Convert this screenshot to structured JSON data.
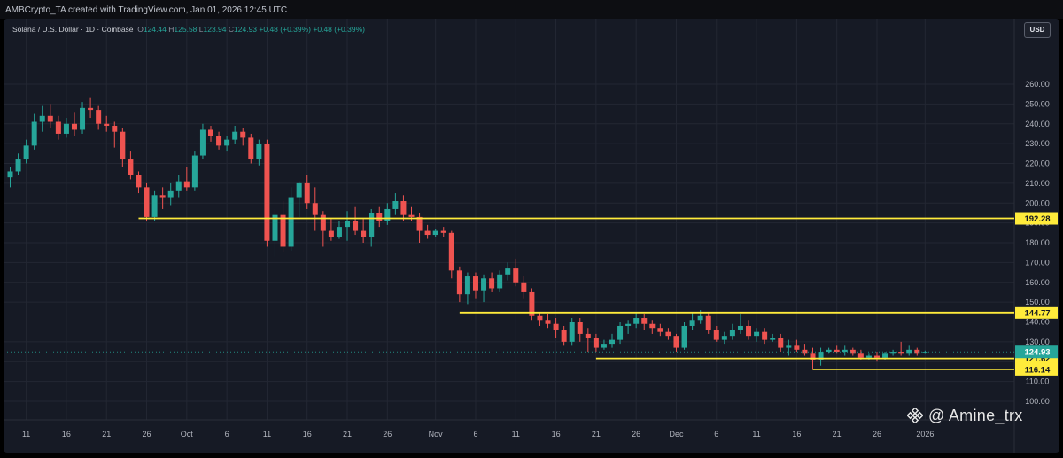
{
  "header": {
    "created_text": "AMBCrypto_TA created with TradingView.com, Jan 01, 2026 12:45 UTC"
  },
  "legend": {
    "symbol": "Solana / U.S. Dollar · 1D · Coinbase",
    "open_label": "O",
    "open": "124.44",
    "high_label": "H",
    "high": "125.58",
    "low_label": "L",
    "low": "123.94",
    "close_label": "C",
    "close": "124.93",
    "change": "+0.48 (+0.39%)",
    "change2": "+0.48 (+0.39%)"
  },
  "currency_label": "USD",
  "watermark": {
    "text": "@ Amine_trx",
    "icon": "binance-square-icon"
  },
  "colors": {
    "up": "#26a69a",
    "down": "#ef5350",
    "level": "#ffeb3b",
    "background": "#161a25",
    "grid": "#232733",
    "axis_text": "#b2b5be"
  },
  "chart_data": {
    "type": "candlestick",
    "title": "Solana / U.S. Dollar · 1D · Coinbase",
    "ylim": [
      90,
      270
    ],
    "y_ticks": [
      100,
      110,
      120,
      130,
      140,
      150,
      160,
      170,
      180,
      190,
      200,
      210,
      220,
      230,
      240,
      250,
      260
    ],
    "x_ticks": [
      "11",
      "16",
      "21",
      "26",
      "Oct",
      "6",
      "11",
      "16",
      "21",
      "26",
      "Nov",
      "6",
      "11",
      "16",
      "21",
      "26",
      "Dec",
      "6",
      "11",
      "16",
      "21",
      "26",
      "2026"
    ],
    "x_tick_dates": [
      "2025-09-11",
      "2025-09-16",
      "2025-09-21",
      "2025-09-26",
      "2025-10-01",
      "2025-10-06",
      "2025-10-11",
      "2025-10-16",
      "2025-10-21",
      "2025-10-26",
      "2025-11-01",
      "2025-11-06",
      "2025-11-11",
      "2025-11-16",
      "2025-11-21",
      "2025-11-26",
      "2025-12-01",
      "2025-12-06",
      "2025-12-11",
      "2025-12-16",
      "2025-12-21",
      "2025-12-26",
      "2026-01-01"
    ],
    "levels": [
      {
        "value": 192.28,
        "label": "192.28",
        "from": "2025-09-25"
      },
      {
        "value": 144.77,
        "label": "144.77",
        "from": "2025-11-04"
      },
      {
        "value": 121.62,
        "label": "121.62",
        "from": "2025-11-21"
      },
      {
        "value": 116.14,
        "label": "116.14",
        "from": "2025-12-18"
      }
    ],
    "last_price": {
      "value": 124.93,
      "label": "124.93"
    },
    "candles": [
      {
        "d": "2025-09-09",
        "o": 213,
        "h": 218,
        "l": 208,
        "c": 216
      },
      {
        "d": "2025-09-10",
        "o": 216,
        "h": 225,
        "l": 214,
        "c": 222
      },
      {
        "d": "2025-09-11",
        "o": 222,
        "h": 232,
        "l": 220,
        "c": 229
      },
      {
        "d": "2025-09-12",
        "o": 229,
        "h": 245,
        "l": 227,
        "c": 241
      },
      {
        "d": "2025-09-13",
        "o": 241,
        "h": 249,
        "l": 236,
        "c": 244
      },
      {
        "d": "2025-09-14",
        "o": 244,
        "h": 250,
        "l": 238,
        "c": 241
      },
      {
        "d": "2025-09-15",
        "o": 241,
        "h": 244,
        "l": 232,
        "c": 235
      },
      {
        "d": "2025-09-16",
        "o": 235,
        "h": 243,
        "l": 233,
        "c": 240
      },
      {
        "d": "2025-09-17",
        "o": 240,
        "h": 246,
        "l": 234,
        "c": 237
      },
      {
        "d": "2025-09-18",
        "o": 237,
        "h": 251,
        "l": 235,
        "c": 248
      },
      {
        "d": "2025-09-19",
        "o": 248,
        "h": 253,
        "l": 243,
        "c": 247
      },
      {
        "d": "2025-09-20",
        "o": 247,
        "h": 249,
        "l": 237,
        "c": 240
      },
      {
        "d": "2025-09-21",
        "o": 240,
        "h": 244,
        "l": 236,
        "c": 239
      },
      {
        "d": "2025-09-22",
        "o": 239,
        "h": 241,
        "l": 228,
        "c": 236
      },
      {
        "d": "2025-09-23",
        "o": 236,
        "h": 238,
        "l": 218,
        "c": 222
      },
      {
        "d": "2025-09-24",
        "o": 222,
        "h": 226,
        "l": 212,
        "c": 214
      },
      {
        "d": "2025-09-25",
        "o": 214,
        "h": 216,
        "l": 205,
        "c": 208
      },
      {
        "d": "2025-09-26",
        "o": 208,
        "h": 210,
        "l": 191,
        "c": 193
      },
      {
        "d": "2025-09-27",
        "o": 193,
        "h": 206,
        "l": 191,
        "c": 204
      },
      {
        "d": "2025-09-28",
        "o": 204,
        "h": 208,
        "l": 197,
        "c": 203
      },
      {
        "d": "2025-09-29",
        "o": 203,
        "h": 210,
        "l": 199,
        "c": 206
      },
      {
        "d": "2025-09-30",
        "o": 206,
        "h": 214,
        "l": 203,
        "c": 211
      },
      {
        "d": "2025-10-01",
        "o": 211,
        "h": 218,
        "l": 206,
        "c": 208
      },
      {
        "d": "2025-10-02",
        "o": 208,
        "h": 226,
        "l": 206,
        "c": 224
      },
      {
        "d": "2025-10-03",
        "o": 224,
        "h": 240,
        "l": 222,
        "c": 237
      },
      {
        "d": "2025-10-04",
        "o": 237,
        "h": 239,
        "l": 231,
        "c": 234
      },
      {
        "d": "2025-10-05",
        "o": 234,
        "h": 236,
        "l": 227,
        "c": 229
      },
      {
        "d": "2025-10-06",
        "o": 229,
        "h": 234,
        "l": 226,
        "c": 232
      },
      {
        "d": "2025-10-07",
        "o": 232,
        "h": 239,
        "l": 230,
        "c": 236
      },
      {
        "d": "2025-10-08",
        "o": 236,
        "h": 238,
        "l": 229,
        "c": 233
      },
      {
        "d": "2025-10-09",
        "o": 233,
        "h": 235,
        "l": 220,
        "c": 222
      },
      {
        "d": "2025-10-10",
        "o": 222,
        "h": 232,
        "l": 219,
        "c": 230
      },
      {
        "d": "2025-10-11",
        "o": 230,
        "h": 232,
        "l": 178,
        "c": 181
      },
      {
        "d": "2025-10-12",
        "o": 181,
        "h": 197,
        "l": 173,
        "c": 194
      },
      {
        "d": "2025-10-13",
        "o": 194,
        "h": 201,
        "l": 175,
        "c": 178
      },
      {
        "d": "2025-10-14",
        "o": 178,
        "h": 208,
        "l": 176,
        "c": 203
      },
      {
        "d": "2025-10-15",
        "o": 203,
        "h": 211,
        "l": 193,
        "c": 210
      },
      {
        "d": "2025-10-16",
        "o": 210,
        "h": 214,
        "l": 197,
        "c": 200
      },
      {
        "d": "2025-10-17",
        "o": 200,
        "h": 208,
        "l": 186,
        "c": 194
      },
      {
        "d": "2025-10-18",
        "o": 194,
        "h": 196,
        "l": 178,
        "c": 186
      },
      {
        "d": "2025-10-19",
        "o": 186,
        "h": 192,
        "l": 181,
        "c": 183
      },
      {
        "d": "2025-10-20",
        "o": 183,
        "h": 191,
        "l": 182,
        "c": 188
      },
      {
        "d": "2025-10-21",
        "o": 188,
        "h": 196,
        "l": 181,
        "c": 191
      },
      {
        "d": "2025-10-22",
        "o": 191,
        "h": 198,
        "l": 184,
        "c": 186
      },
      {
        "d": "2025-10-23",
        "o": 186,
        "h": 192,
        "l": 180,
        "c": 183
      },
      {
        "d": "2025-10-24",
        "o": 183,
        "h": 197,
        "l": 178,
        "c": 195
      },
      {
        "d": "2025-10-25",
        "o": 195,
        "h": 198,
        "l": 188,
        "c": 191
      },
      {
        "d": "2025-10-26",
        "o": 191,
        "h": 200,
        "l": 189,
        "c": 197
      },
      {
        "d": "2025-10-27",
        "o": 197,
        "h": 205,
        "l": 194,
        "c": 201
      },
      {
        "d": "2025-10-28",
        "o": 201,
        "h": 204,
        "l": 191,
        "c": 194
      },
      {
        "d": "2025-10-29",
        "o": 194,
        "h": 198,
        "l": 191,
        "c": 193
      },
      {
        "d": "2025-10-30",
        "o": 193,
        "h": 195,
        "l": 180,
        "c": 186
      },
      {
        "d": "2025-10-31",
        "o": 186,
        "h": 189,
        "l": 182,
        "c": 184
      },
      {
        "d": "2025-11-01",
        "o": 184,
        "h": 187,
        "l": 183,
        "c": 186
      },
      {
        "d": "2025-11-02",
        "o": 186,
        "h": 188,
        "l": 183,
        "c": 185
      },
      {
        "d": "2025-11-03",
        "o": 185,
        "h": 186,
        "l": 162,
        "c": 166
      },
      {
        "d": "2025-11-04",
        "o": 166,
        "h": 168,
        "l": 150,
        "c": 154
      },
      {
        "d": "2025-11-05",
        "o": 154,
        "h": 165,
        "l": 149,
        "c": 163
      },
      {
        "d": "2025-11-06",
        "o": 163,
        "h": 165,
        "l": 152,
        "c": 156
      },
      {
        "d": "2025-11-07",
        "o": 156,
        "h": 164,
        "l": 150,
        "c": 162
      },
      {
        "d": "2025-11-08",
        "o": 162,
        "h": 165,
        "l": 155,
        "c": 157
      },
      {
        "d": "2025-11-09",
        "o": 157,
        "h": 166,
        "l": 155,
        "c": 164
      },
      {
        "d": "2025-11-10",
        "o": 164,
        "h": 170,
        "l": 161,
        "c": 167
      },
      {
        "d": "2025-11-11",
        "o": 167,
        "h": 172,
        "l": 158,
        "c": 160
      },
      {
        "d": "2025-11-12",
        "o": 160,
        "h": 163,
        "l": 152,
        "c": 155
      },
      {
        "d": "2025-11-13",
        "o": 155,
        "h": 157,
        "l": 141,
        "c": 143
      },
      {
        "d": "2025-11-14",
        "o": 143,
        "h": 145,
        "l": 138,
        "c": 141
      },
      {
        "d": "2025-11-15",
        "o": 141,
        "h": 144,
        "l": 137,
        "c": 139
      },
      {
        "d": "2025-11-16",
        "o": 139,
        "h": 142,
        "l": 132,
        "c": 136
      },
      {
        "d": "2025-11-17",
        "o": 136,
        "h": 138,
        "l": 128,
        "c": 130
      },
      {
        "d": "2025-11-18",
        "o": 130,
        "h": 142,
        "l": 128,
        "c": 140
      },
      {
        "d": "2025-11-19",
        "o": 140,
        "h": 142,
        "l": 130,
        "c": 134
      },
      {
        "d": "2025-11-20",
        "o": 134,
        "h": 137,
        "l": 125,
        "c": 132
      },
      {
        "d": "2025-11-21",
        "o": 132,
        "h": 134,
        "l": 125,
        "c": 127
      },
      {
        "d": "2025-11-22",
        "o": 127,
        "h": 131,
        "l": 126,
        "c": 129
      },
      {
        "d": "2025-11-23",
        "o": 129,
        "h": 134,
        "l": 127,
        "c": 131
      },
      {
        "d": "2025-11-24",
        "o": 131,
        "h": 140,
        "l": 129,
        "c": 138
      },
      {
        "d": "2025-11-25",
        "o": 138,
        "h": 141,
        "l": 134,
        "c": 139
      },
      {
        "d": "2025-11-26",
        "o": 139,
        "h": 145,
        "l": 137,
        "c": 142
      },
      {
        "d": "2025-11-27",
        "o": 142,
        "h": 144,
        "l": 136,
        "c": 139
      },
      {
        "d": "2025-11-28",
        "o": 139,
        "h": 141,
        "l": 134,
        "c": 137
      },
      {
        "d": "2025-11-29",
        "o": 137,
        "h": 139,
        "l": 133,
        "c": 135
      },
      {
        "d": "2025-11-30",
        "o": 135,
        "h": 137,
        "l": 131,
        "c": 133
      },
      {
        "d": "2025-12-01",
        "o": 133,
        "h": 134,
        "l": 125,
        "c": 127
      },
      {
        "d": "2025-12-02",
        "o": 127,
        "h": 140,
        "l": 126,
        "c": 138
      },
      {
        "d": "2025-12-03",
        "o": 138,
        "h": 145,
        "l": 136,
        "c": 141
      },
      {
        "d": "2025-12-04",
        "o": 141,
        "h": 146,
        "l": 139,
        "c": 143
      },
      {
        "d": "2025-12-05",
        "o": 143,
        "h": 145,
        "l": 134,
        "c": 136
      },
      {
        "d": "2025-12-06",
        "o": 136,
        "h": 138,
        "l": 130,
        "c": 131
      },
      {
        "d": "2025-12-07",
        "o": 131,
        "h": 135,
        "l": 129,
        "c": 133
      },
      {
        "d": "2025-12-08",
        "o": 133,
        "h": 139,
        "l": 131,
        "c": 136
      },
      {
        "d": "2025-12-09",
        "o": 136,
        "h": 144,
        "l": 134,
        "c": 138
      },
      {
        "d": "2025-12-10",
        "o": 138,
        "h": 141,
        "l": 131,
        "c": 133
      },
      {
        "d": "2025-12-11",
        "o": 133,
        "h": 137,
        "l": 130,
        "c": 135
      },
      {
        "d": "2025-12-12",
        "o": 135,
        "h": 137,
        "l": 129,
        "c": 131
      },
      {
        "d": "2025-12-13",
        "o": 131,
        "h": 134,
        "l": 130,
        "c": 132
      },
      {
        "d": "2025-12-14",
        "o": 132,
        "h": 134,
        "l": 125,
        "c": 127
      },
      {
        "d": "2025-12-15",
        "o": 127,
        "h": 131,
        "l": 123,
        "c": 128
      },
      {
        "d": "2025-12-16",
        "o": 128,
        "h": 131,
        "l": 125,
        "c": 126
      },
      {
        "d": "2025-12-17",
        "o": 126,
        "h": 129,
        "l": 123,
        "c": 124
      },
      {
        "d": "2025-12-18",
        "o": 124,
        "h": 127,
        "l": 116,
        "c": 121
      },
      {
        "d": "2025-12-19",
        "o": 121,
        "h": 127,
        "l": 118,
        "c": 125
      },
      {
        "d": "2025-12-20",
        "o": 125,
        "h": 127,
        "l": 124,
        "c": 126
      },
      {
        "d": "2025-12-21",
        "o": 126,
        "h": 128,
        "l": 124,
        "c": 125
      },
      {
        "d": "2025-12-22",
        "o": 125,
        "h": 128,
        "l": 123,
        "c": 126
      },
      {
        "d": "2025-12-23",
        "o": 126,
        "h": 127,
        "l": 123,
        "c": 124
      },
      {
        "d": "2025-12-24",
        "o": 124,
        "h": 126,
        "l": 121,
        "c": 122
      },
      {
        "d": "2025-12-25",
        "o": 122,
        "h": 124,
        "l": 121,
        "c": 123
      },
      {
        "d": "2025-12-26",
        "o": 123,
        "h": 125,
        "l": 120,
        "c": 122
      },
      {
        "d": "2025-12-27",
        "o": 122,
        "h": 125,
        "l": 121,
        "c": 124
      },
      {
        "d": "2025-12-28",
        "o": 124,
        "h": 126,
        "l": 123,
        "c": 125
      },
      {
        "d": "2025-12-29",
        "o": 125,
        "h": 130,
        "l": 123,
        "c": 124
      },
      {
        "d": "2025-12-30",
        "o": 124,
        "h": 128,
        "l": 123,
        "c": 126
      },
      {
        "d": "2025-12-31",
        "o": 126,
        "h": 127,
        "l": 123,
        "c": 124
      },
      {
        "d": "2026-01-01",
        "o": 124.44,
        "h": 125.58,
        "l": 123.94,
        "c": 124.93
      }
    ]
  }
}
